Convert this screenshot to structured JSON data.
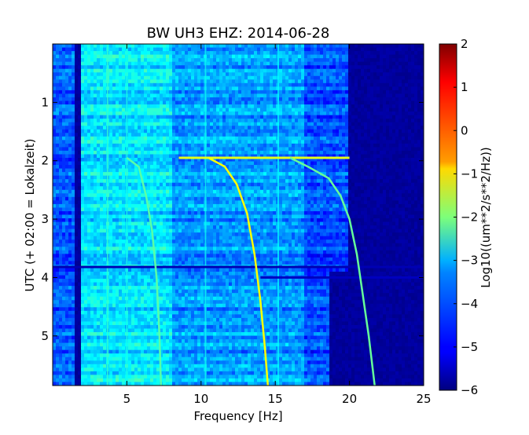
{
  "chart_data": {
    "type": "heatmap",
    "title": "BW UH3 EHZ: 2014-06-28",
    "xlabel": "Frequency [Hz]",
    "ylabel": "UTC (+ 02:00 = Lokalzeit)",
    "xlim": [
      0,
      25
    ],
    "ylim": [
      5.85,
      0.0
    ],
    "xticks": [
      5,
      10,
      15,
      20,
      25
    ],
    "xtick_labels": [
      "5",
      "10",
      "15",
      "20",
      "25"
    ],
    "yticks": [
      1,
      2,
      3,
      4,
      5
    ],
    "ytick_labels": [
      "1",
      "2",
      "3",
      "4",
      "5"
    ],
    "colorbar": {
      "label": "Log10((um**2/s**2/Hz))",
      "range": [
        -6,
        2
      ],
      "ticks": [
        2,
        1,
        0,
        -1,
        -2,
        -3,
        -4,
        -5,
        -6
      ],
      "tick_labels": [
        "2",
        "1",
        "0",
        "−1",
        "−2",
        "−3",
        "−4",
        "−5",
        "−6"
      ],
      "colormap": "jet"
    },
    "background_levels": [
      {
        "freq_range": [
          0,
          1.5
        ],
        "level": -4.3
      },
      {
        "freq_range": [
          2,
          8
        ],
        "level": -3.2
      },
      {
        "freq_range": [
          8,
          17
        ],
        "level": -3.8
      },
      {
        "freq_range": [
          17,
          20
        ],
        "level": -4.4
      },
      {
        "freq_range": [
          20,
          25
        ],
        "level": -5.9
      }
    ],
    "background_cutoff_hz": {
      "upper_part": 20.0,
      "lower_part": 18.0
    },
    "series": [
      {
        "points": [
          [
            5.0,
            1.95
          ],
          [
            5.8,
            2.1
          ],
          [
            6.3,
            2.6
          ],
          [
            6.7,
            3.2
          ],
          [
            7.0,
            4.0
          ],
          [
            7.2,
            5.0
          ],
          [
            7.3,
            5.85
          ]
        ],
        "level": -2.3
      },
      {
        "points": [
          [
            10.5,
            1.95
          ],
          [
            11.6,
            2.1
          ],
          [
            12.4,
            2.4
          ],
          [
            13.1,
            2.9
          ],
          [
            13.6,
            3.6
          ],
          [
            14.0,
            4.4
          ],
          [
            14.3,
            5.2
          ],
          [
            14.5,
            5.85
          ]
        ],
        "level": -1.0
      },
      {
        "points": [
          [
            16.0,
            1.95
          ],
          [
            17.2,
            2.1
          ],
          [
            18.6,
            2.3
          ],
          [
            19.4,
            2.6
          ],
          [
            20.0,
            3.0
          ],
          [
            20.5,
            3.6
          ],
          [
            20.9,
            4.3
          ],
          [
            21.3,
            5.0
          ],
          [
            21.7,
            5.85
          ]
        ],
        "level": -2.2
      }
    ],
    "horizontal_bands": [
      {
        "y": 1.95,
        "x_range": [
          8.5,
          20.0
        ],
        "level": -1.2
      },
      {
        "y": 3.82,
        "x_range": [
          0.0,
          25.0
        ],
        "level": -5.6
      },
      {
        "y": 4.0,
        "x_range": [
          14.0,
          25.0
        ],
        "level": -5.5
      }
    ],
    "vertical_lines": [
      {
        "x": 3.7,
        "level": -2.6
      },
      {
        "x": 5.0,
        "level": -2.8
      },
      {
        "x": 10.3,
        "level": -2.9
      },
      {
        "x": 15.2,
        "level": -3.0
      }
    ]
  }
}
